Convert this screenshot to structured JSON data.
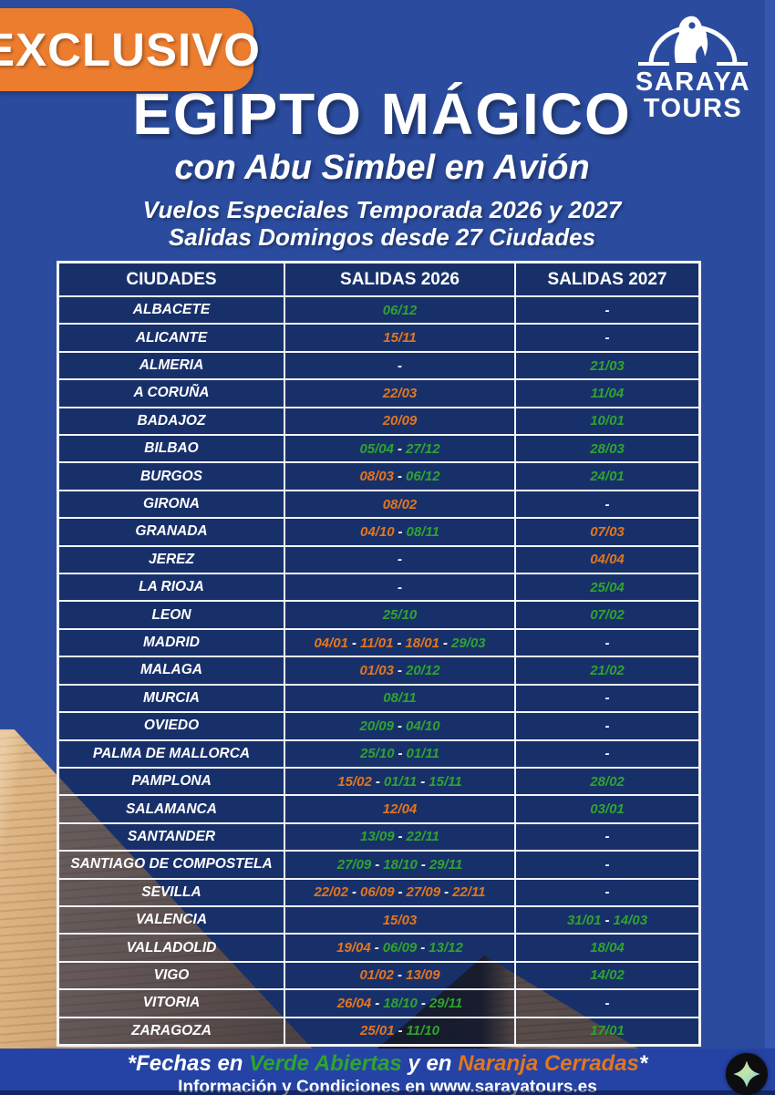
{
  "badge_label": "EXCLUSIVO",
  "logo": {
    "icon": "horus-falcon-arch-icon",
    "name_line1": "SARAYA",
    "name_line2": "TOURS"
  },
  "header": {
    "title": "EGIPTO MÁGICO",
    "subtitle": "con Abu Simbel en Avión",
    "tagline1": "Vuelos Especiales Temporada 2026 y 2027",
    "tagline2": "Salidas Domingos desde 27 Ciudades"
  },
  "table": {
    "columns": [
      "CIUDADES",
      "SALIDAS 2026",
      "SALIDAS 2027"
    ],
    "rows": [
      {
        "city": "ALBACETE",
        "salidas_2026": [
          {
            "date": "06/12",
            "status": "open"
          }
        ],
        "salidas_2027": [
          {
            "date": "-",
            "status": "none"
          }
        ]
      },
      {
        "city": "ALICANTE",
        "salidas_2026": [
          {
            "date": "15/11",
            "status": "closed"
          }
        ],
        "salidas_2027": [
          {
            "date": "-",
            "status": "none"
          }
        ]
      },
      {
        "city": "ALMERIA",
        "salidas_2026": [
          {
            "date": "-",
            "status": "none"
          }
        ],
        "salidas_2027": [
          {
            "date": "21/03",
            "status": "open"
          }
        ]
      },
      {
        "city": "A CORUÑA",
        "salidas_2026": [
          {
            "date": "22/03",
            "status": "closed"
          }
        ],
        "salidas_2027": [
          {
            "date": "11/04",
            "status": "open"
          }
        ]
      },
      {
        "city": "BADAJOZ",
        "salidas_2026": [
          {
            "date": "20/09",
            "status": "closed"
          }
        ],
        "salidas_2027": [
          {
            "date": "10/01",
            "status": "open"
          }
        ]
      },
      {
        "city": "BILBAO",
        "salidas_2026": [
          {
            "date": "05/04",
            "status": "open"
          },
          {
            "date": "27/12",
            "status": "open"
          }
        ],
        "salidas_2027": [
          {
            "date": "28/03",
            "status": "open"
          }
        ]
      },
      {
        "city": "BURGOS",
        "salidas_2026": [
          {
            "date": "08/03",
            "status": "closed"
          },
          {
            "date": "06/12",
            "status": "open"
          }
        ],
        "salidas_2027": [
          {
            "date": "24/01",
            "status": "open"
          }
        ]
      },
      {
        "city": "GIRONA",
        "salidas_2026": [
          {
            "date": "08/02",
            "status": "closed"
          }
        ],
        "salidas_2027": [
          {
            "date": "-",
            "status": "none"
          }
        ]
      },
      {
        "city": "GRANADA",
        "salidas_2026": [
          {
            "date": "04/10",
            "status": "closed"
          },
          {
            "date": "08/11",
            "status": "open"
          }
        ],
        "salidas_2027": [
          {
            "date": "07/03",
            "status": "closed"
          }
        ]
      },
      {
        "city": "JEREZ",
        "salidas_2026": [
          {
            "date": "-",
            "status": "none"
          }
        ],
        "salidas_2027": [
          {
            "date": "04/04",
            "status": "closed"
          }
        ]
      },
      {
        "city": "LA RIOJA",
        "salidas_2026": [
          {
            "date": "-",
            "status": "none"
          }
        ],
        "salidas_2027": [
          {
            "date": "25/04",
            "status": "open"
          }
        ]
      },
      {
        "city": "LEON",
        "salidas_2026": [
          {
            "date": "25/10",
            "status": "open"
          }
        ],
        "salidas_2027": [
          {
            "date": "07/02",
            "status": "open"
          }
        ]
      },
      {
        "city": "MADRID",
        "salidas_2026": [
          {
            "date": "04/01",
            "status": "closed"
          },
          {
            "date": "11/01",
            "status": "closed"
          },
          {
            "date": "18/01",
            "status": "closed"
          },
          {
            "date": "29/03",
            "status": "open"
          }
        ],
        "salidas_2027": [
          {
            "date": "-",
            "status": "none"
          }
        ]
      },
      {
        "city": "MALAGA",
        "salidas_2026": [
          {
            "date": "01/03",
            "status": "closed"
          },
          {
            "date": "20/12",
            "status": "open"
          }
        ],
        "salidas_2027": [
          {
            "date": "21/02",
            "status": "open"
          }
        ]
      },
      {
        "city": "MURCIA",
        "salidas_2026": [
          {
            "date": "08/11",
            "status": "open"
          }
        ],
        "salidas_2027": [
          {
            "date": "-",
            "status": "none"
          }
        ]
      },
      {
        "city": "OVIEDO",
        "salidas_2026": [
          {
            "date": "20/09",
            "status": "open"
          },
          {
            "date": "04/10",
            "status": "open"
          }
        ],
        "salidas_2027": [
          {
            "date": "-",
            "status": "none"
          }
        ]
      },
      {
        "city": "PALMA DE MALLORCA",
        "salidas_2026": [
          {
            "date": "25/10",
            "status": "open"
          },
          {
            "date": "01/11",
            "status": "open"
          }
        ],
        "salidas_2027": [
          {
            "date": "-",
            "status": "none"
          }
        ]
      },
      {
        "city": "PAMPLONA",
        "salidas_2026": [
          {
            "date": "15/02",
            "status": "closed"
          },
          {
            "date": "01/11",
            "status": "open"
          },
          {
            "date": "15/11",
            "status": "open"
          }
        ],
        "salidas_2027": [
          {
            "date": "28/02",
            "status": "open"
          }
        ]
      },
      {
        "city": "SALAMANCA",
        "salidas_2026": [
          {
            "date": "12/04",
            "status": "closed"
          }
        ],
        "salidas_2027": [
          {
            "date": "03/01",
            "status": "open"
          }
        ]
      },
      {
        "city": "SANTANDER",
        "salidas_2026": [
          {
            "date": "13/09",
            "status": "open"
          },
          {
            "date": "22/11",
            "status": "open"
          }
        ],
        "salidas_2027": [
          {
            "date": "-",
            "status": "none"
          }
        ]
      },
      {
        "city": "SANTIAGO DE COMPOSTELA",
        "salidas_2026": [
          {
            "date": "27/09",
            "status": "open"
          },
          {
            "date": "18/10",
            "status": "open"
          },
          {
            "date": "29/11",
            "status": "open"
          }
        ],
        "salidas_2027": [
          {
            "date": "-",
            "status": "none"
          }
        ]
      },
      {
        "city": "SEVILLA",
        "salidas_2026": [
          {
            "date": "22/02",
            "status": "closed"
          },
          {
            "date": "06/09",
            "status": "closed"
          },
          {
            "date": "27/09",
            "status": "closed"
          },
          {
            "date": "22/11",
            "status": "closed"
          }
        ],
        "salidas_2027": [
          {
            "date": "-",
            "status": "none"
          }
        ]
      },
      {
        "city": "VALENCIA",
        "salidas_2026": [
          {
            "date": "15/03",
            "status": "closed"
          }
        ],
        "salidas_2027": [
          {
            "date": "31/01",
            "status": "open"
          },
          {
            "date": "14/03",
            "status": "open"
          }
        ]
      },
      {
        "city": "VALLADOLID",
        "salidas_2026": [
          {
            "date": "19/04",
            "status": "closed"
          },
          {
            "date": "06/09",
            "status": "open"
          },
          {
            "date": "13/12",
            "status": "open"
          }
        ],
        "salidas_2027": [
          {
            "date": "18/04",
            "status": "open"
          }
        ]
      },
      {
        "city": "VIGO",
        "salidas_2026": [
          {
            "date": "01/02",
            "status": "closed"
          },
          {
            "date": "13/09",
            "status": "closed"
          }
        ],
        "salidas_2027": [
          {
            "date": "14/02",
            "status": "open"
          }
        ]
      },
      {
        "city": "VITORIA",
        "salidas_2026": [
          {
            "date": "26/04",
            "status": "closed"
          },
          {
            "date": "18/10",
            "status": "open"
          },
          {
            "date": "29/11",
            "status": "open"
          }
        ],
        "salidas_2027": [
          {
            "date": "-",
            "status": "none"
          }
        ]
      },
      {
        "city": "ZARAGOZA",
        "salidas_2026": [
          {
            "date": "25/01",
            "status": "closed"
          },
          {
            "date": "11/10",
            "status": "open"
          }
        ],
        "salidas_2027": [
          {
            "date": "17/01",
            "status": "open"
          }
        ]
      }
    ]
  },
  "legend": {
    "parts": [
      {
        "text": "*Fechas en ",
        "style": "white"
      },
      {
        "text": "Verde Abiertas",
        "style": "open-green"
      },
      {
        "text": " y en ",
        "style": "white"
      },
      {
        "text": "Naranja Cerradas",
        "style": "closed-orange"
      },
      {
        "text": "*",
        "style": "white"
      }
    ]
  },
  "footer_info": "Información y Condiciones en www.sarayatours.es",
  "date_separator": "-",
  "colors": {
    "open_green": "#2FA32F",
    "closed_orange": "#E2761F",
    "badge_orange": "#EC7D2F",
    "background_blue": "#2B4C9E",
    "cell_navy": "#1C3870",
    "footer_blue": "#2443A4"
  }
}
